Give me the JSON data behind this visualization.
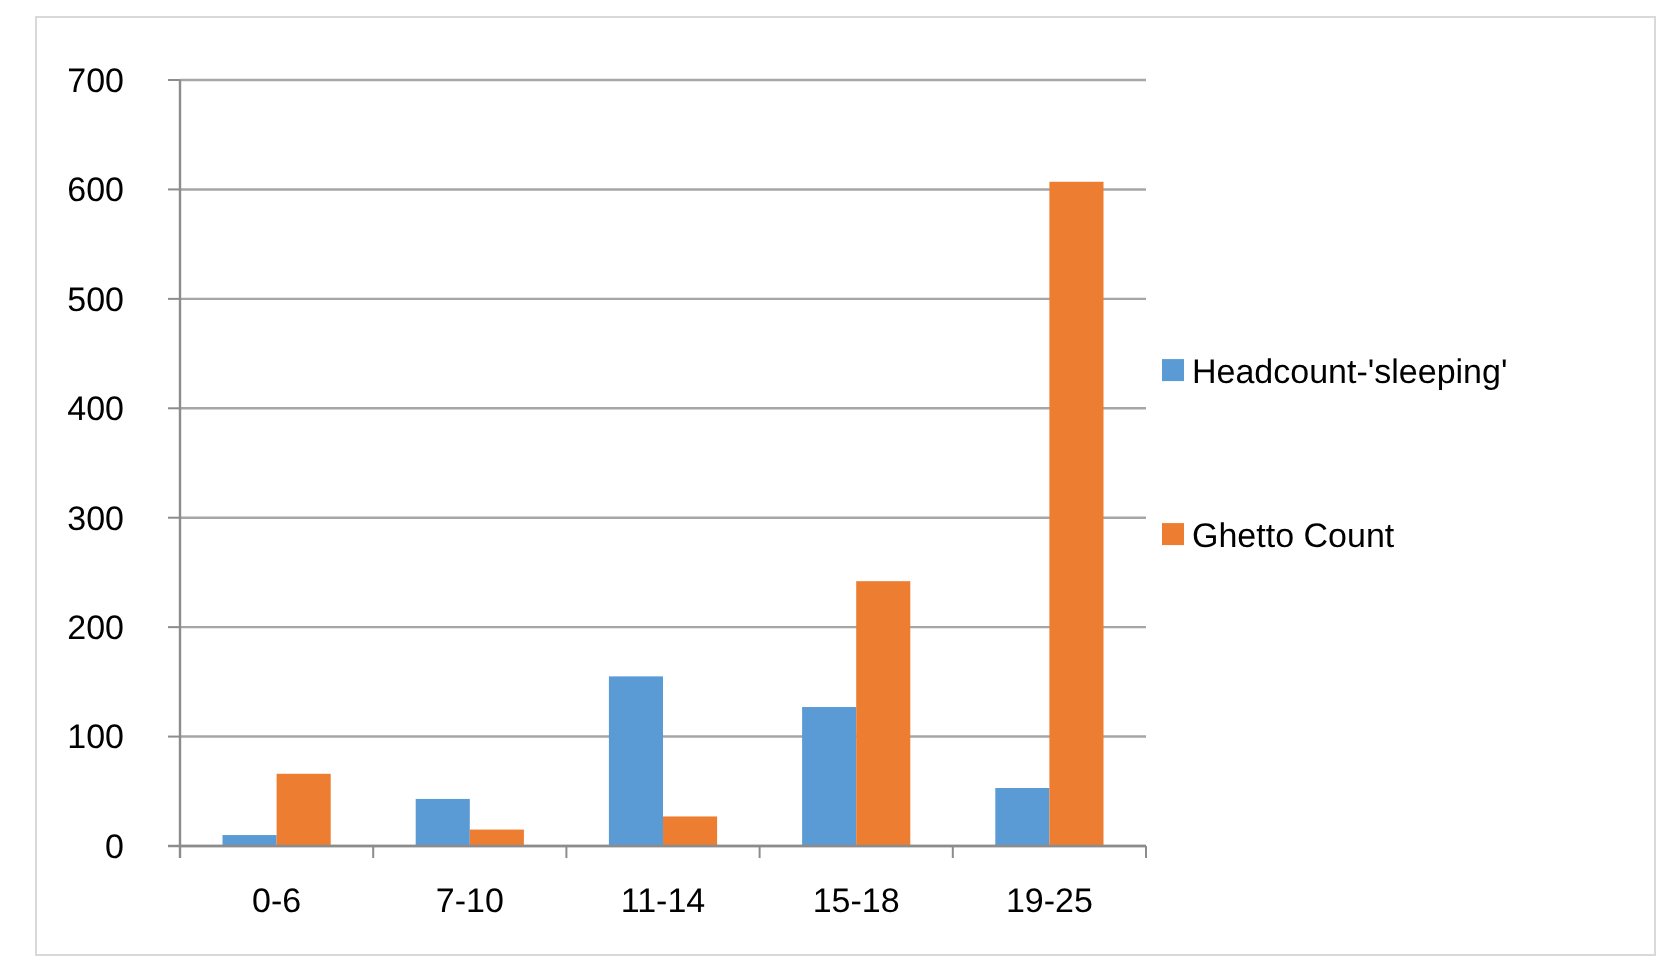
{
  "chart_data": {
    "type": "bar",
    "categories": [
      "0-6",
      "7-10",
      "11-14",
      "15-18",
      "19-25"
    ],
    "series": [
      {
        "name": "Headcount-'sleeping'",
        "color": "#5b9bd5",
        "values": [
          10,
          43,
          155,
          127,
          53
        ]
      },
      {
        "name": "Ghetto Count",
        "color": "#ed7d31",
        "values": [
          66,
          15,
          27,
          242,
          607
        ]
      }
    ],
    "ylim": [
      0,
      700
    ],
    "yticks": [
      0,
      100,
      200,
      300,
      400,
      500,
      600,
      700
    ],
    "grid": "y",
    "legend": "right"
  }
}
